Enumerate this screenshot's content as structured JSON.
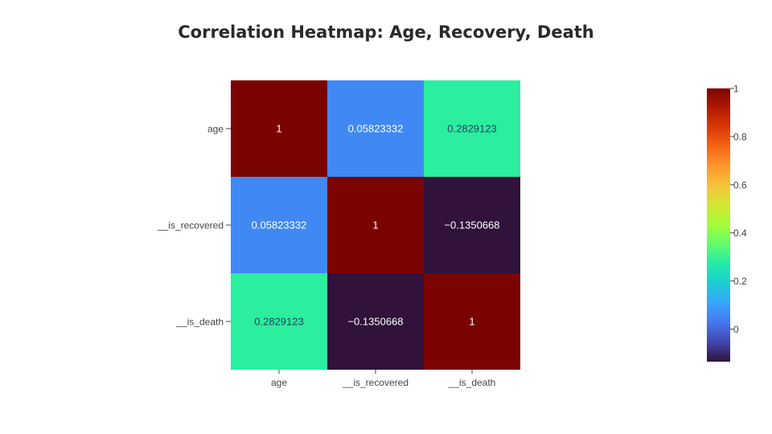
{
  "chart_data": {
    "type": "heatmap",
    "title": "Correlation Heatmap: Age, Recovery, Death",
    "x_categories": [
      "age",
      "__is_recovered",
      "__is_death"
    ],
    "y_categories": [
      "age",
      "__is_recovered",
      "__is_death"
    ],
    "z": [
      [
        1,
        0.05823332,
        0.2829123
      ],
      [
        0.05823332,
        1,
        -0.1350668
      ],
      [
        0.2829123,
        -0.1350668,
        1
      ]
    ],
    "cell_labels": [
      [
        "1",
        "0.05823332",
        "0.2829123"
      ],
      [
        "0.05823332",
        "1",
        "−0.1350668"
      ],
      [
        "0.2829123",
        "−0.1350668",
        "1"
      ]
    ],
    "zmin": -0.1350668,
    "zmax": 1,
    "colorscale": "turbo",
    "colorbar": {
      "ticks": [
        0,
        0.2,
        0.4,
        0.6,
        0.8,
        1
      ],
      "tick_labels": [
        "0",
        "0.2",
        "0.4",
        "0.6",
        "0.8",
        "1"
      ],
      "placement": "right"
    },
    "grid": false
  }
}
